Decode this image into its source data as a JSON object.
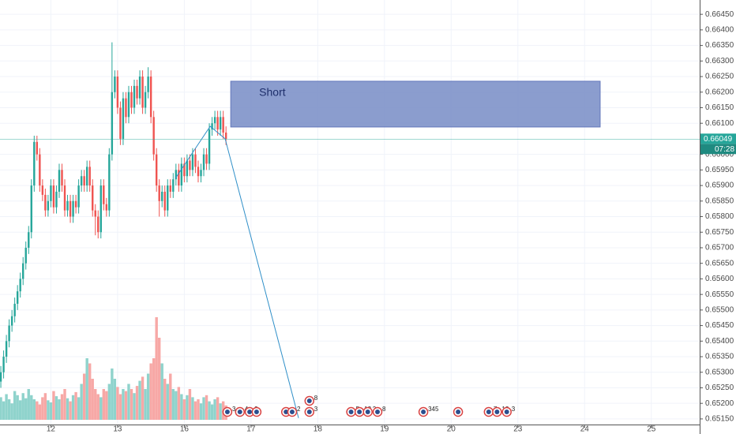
{
  "chart_data": {
    "type": "candlestick",
    "x": [
      0,
      1,
      2,
      3,
      4,
      5,
      6,
      7,
      8,
      9,
      10,
      11,
      12,
      13,
      14,
      15,
      16,
      17,
      18,
      19,
      20,
      21,
      22,
      23,
      24,
      25,
      26,
      27,
      28,
      29,
      30,
      31,
      32,
      33,
      34,
      35,
      36,
      37,
      38,
      39,
      40,
      41,
      42,
      43,
      44,
      45,
      46,
      47,
      48,
      49,
      50,
      51,
      52,
      53,
      54,
      55,
      56,
      57,
      58,
      59,
      60,
      61,
      62,
      63,
      64,
      65,
      66,
      67,
      68,
      69,
      70,
      71,
      72,
      73,
      74,
      75,
      76,
      77,
      78,
      79,
      80,
      81
    ],
    "open": [
      0.6527,
      0.653,
      0.6535,
      0.654,
      0.6545,
      0.6548,
      0.6552,
      0.6556,
      0.656,
      0.6565,
      0.657,
      0.6575,
      0.659,
      0.6604,
      0.66,
      0.659,
      0.6587,
      0.6582,
      0.6585,
      0.659,
      0.6583,
      0.6588,
      0.6595,
      0.659,
      0.6582,
      0.6585,
      0.658,
      0.6585,
      0.6583,
      0.659,
      0.6593,
      0.659,
      0.6596,
      0.659,
      0.6582,
      0.658,
      0.6575,
      0.659,
      0.6584,
      0.6582,
      0.66,
      0.662,
      0.6625,
      0.6615,
      0.6605,
      0.6618,
      0.6612,
      0.662,
      0.6615,
      0.6622,
      0.6618,
      0.6625,
      0.6615,
      0.662,
      0.6625,
      0.6612,
      0.66,
      0.659,
      0.6585,
      0.6588,
      0.6582,
      0.659,
      0.6588,
      0.6592,
      0.6595,
      0.659,
      0.6597,
      0.6593,
      0.6598,
      0.6595,
      0.66,
      0.6596,
      0.6593,
      0.6595,
      0.66,
      0.6597,
      0.6608,
      0.661,
      0.6612,
      0.6608,
      0.6612,
      0.6607
    ],
    "high": [
      0.6532,
      0.6537,
      0.6542,
      0.6547,
      0.655,
      0.6554,
      0.6558,
      0.6562,
      0.6567,
      0.6572,
      0.6577,
      0.6592,
      0.6606,
      0.6606,
      0.6602,
      0.6592,
      0.6589,
      0.6587,
      0.6592,
      0.6592,
      0.659,
      0.6597,
      0.6597,
      0.6592,
      0.6587,
      0.6587,
      0.6587,
      0.6587,
      0.6592,
      0.6595,
      0.6595,
      0.6598,
      0.6598,
      0.6592,
      0.6584,
      0.6582,
      0.6592,
      0.6592,
      0.6586,
      0.6602,
      0.6636,
      0.6627,
      0.6627,
      0.6617,
      0.662,
      0.662,
      0.6622,
      0.6622,
      0.6624,
      0.6624,
      0.6627,
      0.6627,
      0.6622,
      0.6628,
      0.6627,
      0.6614,
      0.6602,
      0.6592,
      0.659,
      0.659,
      0.6592,
      0.6592,
      0.6594,
      0.6597,
      0.6597,
      0.6599,
      0.6599,
      0.66,
      0.66,
      0.6602,
      0.6602,
      0.6598,
      0.6597,
      0.6602,
      0.6602,
      0.661,
      0.6612,
      0.6614,
      0.6614,
      0.6614,
      0.6614,
      0.6609
    ],
    "low": [
      0.6525,
      0.6528,
      0.6533,
      0.6538,
      0.6543,
      0.6546,
      0.655,
      0.6554,
      0.6558,
      0.6563,
      0.6568,
      0.6573,
      0.6588,
      0.6598,
      0.6588,
      0.6585,
      0.658,
      0.658,
      0.6583,
      0.6581,
      0.6581,
      0.6586,
      0.6588,
      0.658,
      0.658,
      0.6578,
      0.6578,
      0.6581,
      0.6581,
      0.6588,
      0.6588,
      0.6588,
      0.6588,
      0.658,
      0.6574,
      0.6573,
      0.6573,
      0.6582,
      0.658,
      0.658,
      0.6598,
      0.6618,
      0.6613,
      0.6603,
      0.6603,
      0.661,
      0.661,
      0.6613,
      0.6613,
      0.6616,
      0.6616,
      0.6613,
      0.6613,
      0.6618,
      0.661,
      0.6598,
      0.6588,
      0.658,
      0.6583,
      0.658,
      0.658,
      0.6586,
      0.6586,
      0.659,
      0.6588,
      0.6588,
      0.6591,
      0.6591,
      0.6593,
      0.6593,
      0.6594,
      0.6591,
      0.6591,
      0.6593,
      0.6595,
      0.6595,
      0.6606,
      0.6608,
      0.6606,
      0.6606,
      0.6605,
      0.6603
    ],
    "close": [
      0.653,
      0.6535,
      0.654,
      0.6545,
      0.6548,
      0.6552,
      0.6556,
      0.656,
      0.6565,
      0.657,
      0.6575,
      0.659,
      0.6604,
      0.66,
      0.659,
      0.6587,
      0.6582,
      0.6585,
      0.659,
      0.6583,
      0.6588,
      0.6595,
      0.659,
      0.6582,
      0.6585,
      0.658,
      0.6585,
      0.6583,
      0.659,
      0.6593,
      0.659,
      0.6596,
      0.659,
      0.6582,
      0.658,
      0.6575,
      0.659,
      0.6584,
      0.6582,
      0.66,
      0.662,
      0.6625,
      0.6615,
      0.6605,
      0.6618,
      0.6612,
      0.662,
      0.6615,
      0.6622,
      0.6618,
      0.6625,
      0.6615,
      0.662,
      0.6625,
      0.6612,
      0.66,
      0.659,
      0.6585,
      0.6588,
      0.6582,
      0.659,
      0.6588,
      0.6592,
      0.6595,
      0.659,
      0.6597,
      0.6593,
      0.6598,
      0.6595,
      0.66,
      0.6596,
      0.6593,
      0.6595,
      0.66,
      0.6597,
      0.6608,
      0.661,
      0.6612,
      0.6608,
      0.6612,
      0.6607,
      0.6605
    ],
    "volume": [
      22,
      18,
      25,
      20,
      16,
      28,
      24,
      19,
      26,
      21,
      30,
      24,
      20,
      18,
      15,
      22,
      26,
      19,
      17,
      28,
      23,
      20,
      25,
      30,
      21,
      18,
      24,
      27,
      22,
      35,
      45,
      60,
      55,
      40,
      30,
      25,
      22,
      30,
      28,
      35,
      50,
      40,
      32,
      25,
      30,
      28,
      35,
      30,
      26,
      33,
      38,
      42,
      30,
      45,
      55,
      60,
      100,
      80,
      55,
      40,
      35,
      45,
      30,
      28,
      32,
      25,
      20,
      24,
      30,
      22,
      18,
      20,
      16,
      22,
      24,
      18,
      15,
      20,
      22,
      16,
      18,
      14
    ],
    "up_color": "#26a69a",
    "down_color": "#ef5350",
    "volume_up_color": "#8fd3cc",
    "volume_down_color": "#f7a8a6",
    "xlim": [
      -0.3,
      251.4
    ],
    "xticks": [
      {
        "value": 18,
        "label": "12"
      },
      {
        "value": 42,
        "label": "13"
      },
      {
        "value": 66,
        "label": "16"
      },
      {
        "value": 90,
        "label": "17"
      },
      {
        "value": 114,
        "label": "18"
      },
      {
        "value": 138,
        "label": "19"
      },
      {
        "value": 162,
        "label": "20"
      },
      {
        "value": 186,
        "label": "23"
      },
      {
        "value": 210,
        "label": "24"
      },
      {
        "value": 234,
        "label": "25"
      }
    ],
    "ylim": [
      0.65132,
      0.66496
    ],
    "yticks": [
      {
        "value": 0.6645,
        "label": "0.66450"
      },
      {
        "value": 0.664,
        "label": "0.66400"
      },
      {
        "value": 0.6635,
        "label": "0.66350"
      },
      {
        "value": 0.663,
        "label": "0.66300"
      },
      {
        "value": 0.6625,
        "label": "0.66250"
      },
      {
        "value": 0.662,
        "label": "0.66200"
      },
      {
        "value": 0.6615,
        "label": "0.66150"
      },
      {
        "value": 0.661,
        "label": "0.66100"
      },
      {
        "value": 0.66,
        "label": "0.66000"
      },
      {
        "value": 0.6595,
        "label": "0.65950"
      },
      {
        "value": 0.659,
        "label": "0.65900"
      },
      {
        "value": 0.6585,
        "label": "0.65850"
      },
      {
        "value": 0.658,
        "label": "0.65800"
      },
      {
        "value": 0.6575,
        "label": "0.65750"
      },
      {
        "value": 0.657,
        "label": "0.65700"
      },
      {
        "value": 0.6565,
        "label": "0.65650"
      },
      {
        "value": 0.656,
        "label": "0.65600"
      },
      {
        "value": 0.6555,
        "label": "0.65550"
      },
      {
        "value": 0.655,
        "label": "0.65500"
      },
      {
        "value": 0.6545,
        "label": "0.65450"
      },
      {
        "value": 0.654,
        "label": "0.65400"
      },
      {
        "value": 0.6535,
        "label": "0.65350"
      },
      {
        "value": 0.653,
        "label": "0.65300"
      },
      {
        "value": 0.6525,
        "label": "0.65250"
      },
      {
        "value": 0.652,
        "label": "0.65200"
      },
      {
        "value": 0.6515,
        "label": "0.65150"
      }
    ],
    "grid": true,
    "last_price": 0.66049,
    "countdown": "07:28",
    "last_price_color": "#26a69a",
    "zone": {
      "label": "Short",
      "x": [
        82.7,
        215.6
      ],
      "y": [
        0.66088,
        0.66235
      ],
      "color": "#8598cc"
    },
    "projection": {
      "x": [
        62.8,
        75.3,
        80.7,
        107.1
      ],
      "y": [
        0.65923,
        0.6609,
        0.6605,
        0.65153
      ],
      "color": "#2f8fc8"
    },
    "events": [
      {
        "x": 81.5,
        "label": "3"
      },
      {
        "x": 86,
        "label": "4"
      },
      {
        "x": 89.5,
        "label": "2"
      },
      {
        "x": 92
      },
      {
        "x": 102.6
      },
      {
        "x": 104.8,
        "label": "2"
      },
      {
        "x": 111,
        "label": "3"
      },
      {
        "x": 111,
        "label": "8"
      },
      {
        "x": 126,
        "label": "5"
      },
      {
        "x": 129,
        "label": "12"
      },
      {
        "x": 132,
        "label": "2"
      },
      {
        "x": 135.5,
        "label": "8"
      },
      {
        "x": 152,
        "label": "345"
      },
      {
        "x": 164.5
      },
      {
        "x": 175.5,
        "label": "7"
      },
      {
        "x": 178.5,
        "label": "12"
      },
      {
        "x": 182,
        "label": "3"
      }
    ]
  }
}
